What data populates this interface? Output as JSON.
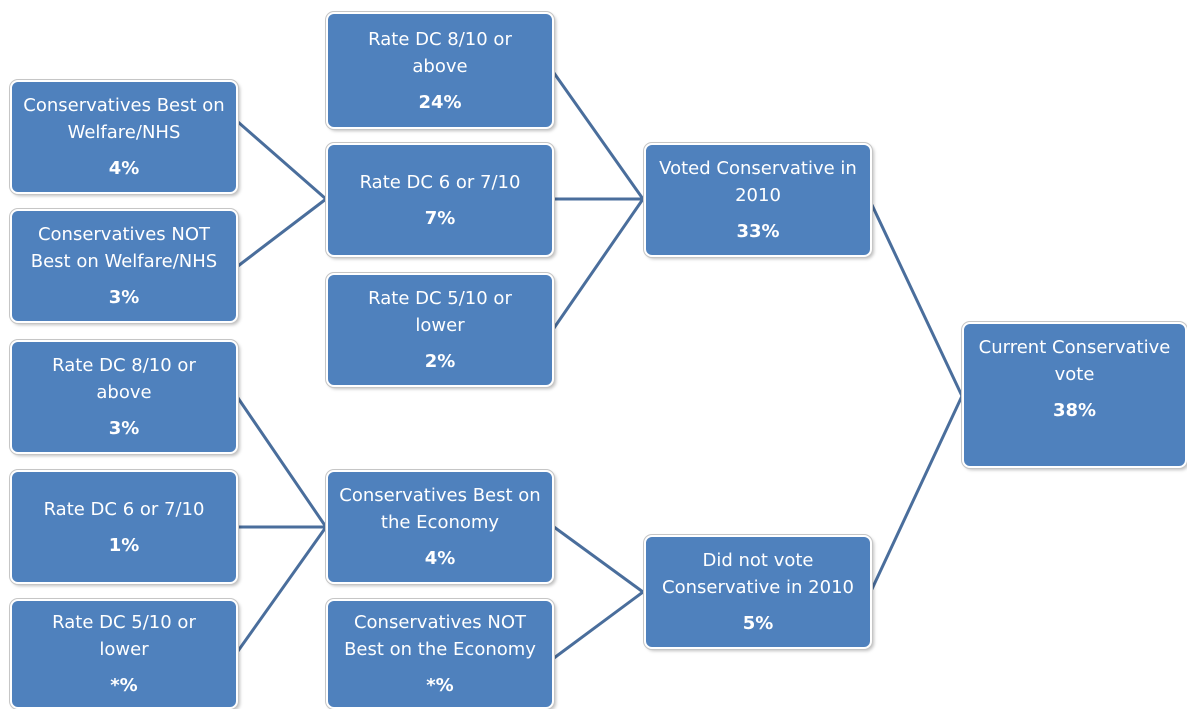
{
  "nodes": {
    "welfare_best": {
      "label": "Conservatives Best on Welfare/NHS",
      "value": "4%"
    },
    "welfare_not_best": {
      "label": "Conservatives NOT Best on Welfare/NHS",
      "value": "3%"
    },
    "left_rate_8_above": {
      "label": "Rate DC 8/10 or above",
      "value": "3%"
    },
    "left_rate_6_7": {
      "label": "Rate DC 6 or 7/10",
      "value": "1%"
    },
    "left_rate_5_lower": {
      "label": "Rate DC 5/10 or lower",
      "value": "*%"
    },
    "mid_rate_8_above": {
      "label": "Rate DC 8/10 or above",
      "value": "24%"
    },
    "mid_rate_6_7": {
      "label": "Rate DC 6 or 7/10",
      "value": "7%"
    },
    "mid_rate_5_lower": {
      "label": "Rate DC 5/10 or lower",
      "value": "2%"
    },
    "economy_best": {
      "label": "Conservatives Best on the Economy",
      "value": "4%"
    },
    "economy_not_best": {
      "label": "Conservatives NOT Best on the Economy",
      "value": "*%"
    },
    "voted_con_2010": {
      "label": "Voted Conservative in 2010",
      "value": "33%"
    },
    "not_voted_con_2010": {
      "label": "Did not vote Conservative in 2010",
      "value": "5%"
    },
    "current_con_vote": {
      "label": "Current Conservative vote",
      "value": "38%"
    }
  },
  "colors": {
    "box_fill": "#4f81bd",
    "connector": "#4a6e9c",
    "text": "#ffffff"
  }
}
